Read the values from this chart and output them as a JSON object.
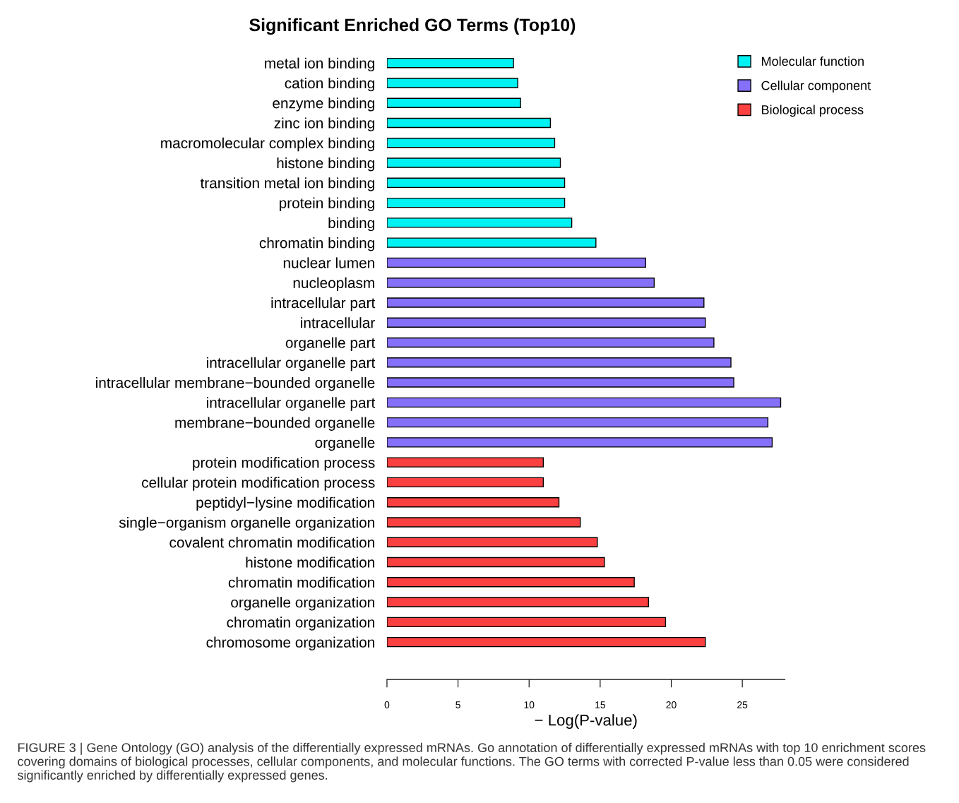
{
  "chart_data": {
    "type": "bar",
    "orientation": "horizontal",
    "title": "Significant Enriched GO Terms (Top10)",
    "xlabel": "− Log(P-value)",
    "categories": [
      "metal ion binding",
      "cation binding",
      "enzyme binding",
      "zinc ion binding",
      "macromolecular complex binding",
      "histone binding",
      "transition metal ion binding",
      "protein binding",
      "binding",
      "chromatin binding",
      "nuclear lumen",
      "nucleoplasm",
      "intracellular part",
      "intracellular",
      "organelle part",
      "intracellular organelle part",
      "intracellular membrane−bounded organelle",
      "intracellular organelle part",
      "membrane−bounded organelle",
      "organelle",
      "protein modification process",
      "cellular protein modification process",
      "peptidyl−lysine modification",
      "single−organism organelle organization",
      "covalent chromatin modification",
      "histone modification",
      "chromatin modification",
      "organelle organization",
      "chromatin organization",
      "chromosome organization"
    ],
    "series": [
      {
        "name": "Molecular function",
        "color": "#00f2f2",
        "values": [
          8.9,
          9.2,
          9.4,
          11.5,
          11.8,
          12.2,
          12.5,
          12.5,
          13.0,
          14.7,
          null,
          null,
          null,
          null,
          null,
          null,
          null,
          null,
          null,
          null,
          null,
          null,
          null,
          null,
          null,
          null,
          null,
          null,
          null,
          null
        ]
      },
      {
        "name": "Cellular component",
        "color": "#8570fa",
        "values": [
          null,
          null,
          null,
          null,
          null,
          null,
          null,
          null,
          null,
          null,
          18.2,
          18.8,
          22.3,
          22.4,
          23.0,
          24.2,
          24.4,
          27.7,
          26.8,
          27.1,
          null,
          null,
          null,
          null,
          null,
          null,
          null,
          null,
          null,
          null
        ]
      },
      {
        "name": "Biological process",
        "color": "#fa4040",
        "values": [
          null,
          null,
          null,
          null,
          null,
          null,
          null,
          null,
          null,
          null,
          null,
          null,
          null,
          null,
          null,
          null,
          null,
          null,
          null,
          null,
          11.0,
          11.0,
          12.1,
          13.6,
          14.8,
          15.3,
          17.4,
          18.4,
          19.6,
          22.4
        ]
      }
    ],
    "xlim": [
      0,
      28
    ],
    "xticks": [
      0,
      5,
      10,
      15,
      20,
      25
    ],
    "legend": "top right",
    "grid": false,
    "annotations": [
      "FIGURE 3 | Gene Ontology (GO) analysis of the differentially expressed mRNAs. Go annotation of differentially expressed mRNAs with top 10 enrichment scores covering domains of biological processes, cellular components, and molecular functions. The GO terms with corrected P-value less than 0.05 were considered significantly enriched by differentially expressed genes."
    ]
  }
}
